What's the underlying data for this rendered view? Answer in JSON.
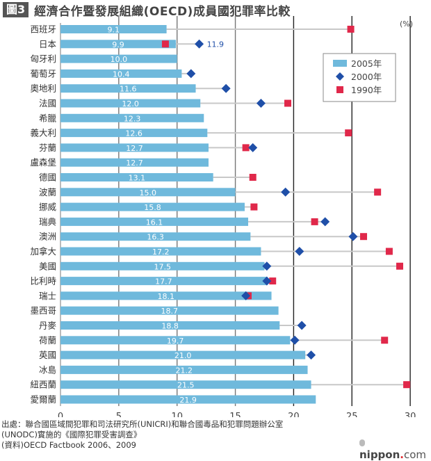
{
  "header": {
    "figure_label": "圖3",
    "title": "經濟合作暨發展組織(OECD)成員國犯罪率比較"
  },
  "footer": {
    "source_lines": [
      "出處：聯合國區域間犯罪和司法研究所(UNICRI)和聯合國毒品和犯罪問題辦公室",
      "(UNODC)實施的《國際犯罪受害調查》",
      "(資料)OECD Factbook 2006、2009"
    ],
    "brand_name": "nippon",
    "brand_dot": ".",
    "brand_suffix": "com"
  },
  "colors": {
    "bar_2005": "#6fb9dc",
    "marker_2000": "#1f4fa8",
    "marker_1990": "#e0284a",
    "connector": "#c8c8c8",
    "gridline": "#555555"
  },
  "chart_data": {
    "type": "bar",
    "orientation": "horizontal",
    "title": "經濟合作暨發展組織(OECD)成員國犯罪率比較",
    "xlabel": "",
    "ylabel": "",
    "unit_label": "(%)",
    "xlim": [
      0,
      30
    ],
    "x_ticks": [
      0,
      5,
      10,
      15,
      20,
      25,
      30
    ],
    "grid": true,
    "legend_position": "top-right",
    "legend": [
      {
        "name": "2005年",
        "marker": "bar"
      },
      {
        "name": "2000年",
        "marker": "diamond"
      },
      {
        "name": "1990年",
        "marker": "square"
      }
    ],
    "categories": [
      "西班牙",
      "日本",
      "匈牙利",
      "葡萄牙",
      "奧地利",
      "法國",
      "希臘",
      "義大利",
      "芬蘭",
      "盧森堡",
      "德國",
      "波蘭",
      "挪威",
      "瑞典",
      "澳洲",
      "加拿大",
      "美國",
      "比利時",
      "瑞士",
      "墨西哥",
      "丹麥",
      "荷蘭",
      "英國",
      "冰島",
      "紐西蘭",
      "愛爾蘭"
    ],
    "series": [
      {
        "name": "2005年",
        "type": "bar",
        "values": [
          9.1,
          9.9,
          10.0,
          10.4,
          11.6,
          12.0,
          12.3,
          12.6,
          12.7,
          12.7,
          13.1,
          15.0,
          15.8,
          16.1,
          16.3,
          17.2,
          17.5,
          17.7,
          18.1,
          18.7,
          18.8,
          19.7,
          21.0,
          21.2,
          21.5,
          21.9
        ],
        "labels": [
          "9.1",
          "9.9",
          "10.0",
          "10.4",
          "11.6",
          "12.0",
          "12.3",
          "12.6",
          "12.7",
          "12.7",
          "13.1",
          "15.0",
          "15.8",
          "16.1",
          "16.3",
          "17.2",
          "17.5",
          "17.7",
          "18.1",
          "18.7",
          "18.8",
          "19.7",
          "21.0",
          "21.2",
          "21.5",
          "21.9"
        ]
      },
      {
        "name": "2000年",
        "type": "diamond",
        "values": [
          null,
          11.9,
          null,
          11.2,
          14.2,
          17.2,
          null,
          null,
          16.5,
          null,
          null,
          19.3,
          null,
          22.7,
          25.1,
          20.5,
          17.7,
          17.7,
          15.9,
          null,
          20.7,
          20.1,
          21.5,
          null,
          null,
          null
        ]
      },
      {
        "name": "1990年",
        "type": "square",
        "values": [
          24.9,
          9.0,
          null,
          null,
          null,
          19.5,
          null,
          24.7,
          15.9,
          null,
          16.5,
          27.2,
          16.6,
          21.8,
          26.0,
          28.2,
          29.1,
          18.2,
          16.1,
          null,
          null,
          27.8,
          null,
          null,
          29.7,
          null
        ]
      }
    ],
    "annotations": [
      {
        "category": "日本",
        "series": "2000年",
        "text": "11.9"
      }
    ]
  }
}
